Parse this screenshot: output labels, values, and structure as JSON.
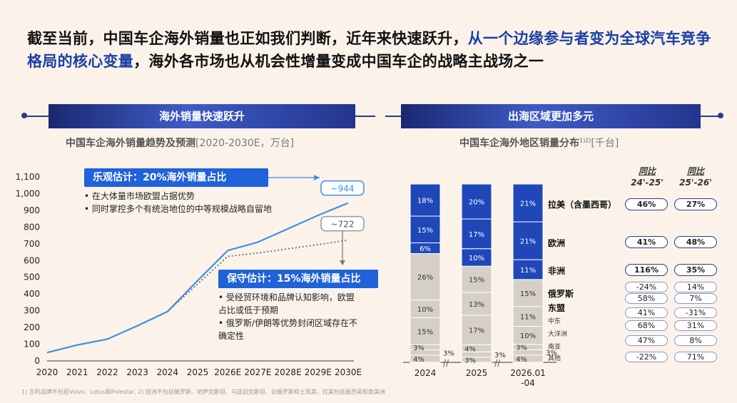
{
  "headline": {
    "part1": "截至当前，中国车企海外销量也正如我们判断，近年来快速跃升，",
    "part2": "从一个边缘参与者变为全球汽车竞争格局的核心变量",
    "part3": "，海外各市场也从机会性增量变成中国车企的战略主战场之一"
  },
  "left_banner": "海外销量快速跃升",
  "right_banner": "出海区域更加多元",
  "left_subtitle": "中国车企海外销量趋势及预测",
  "left_unit": "[2020-2030E，万台]",
  "right_subtitle": "中国车企海外地区销量分布",
  "right_sup": "1)2)",
  "right_unit": "[千台]",
  "optimistic": {
    "label": "乐观估计：20%海外销量占比",
    "end_label": "~944",
    "bullets": [
      "在大体量市场欧盟占据优势",
      "同时掌控多个有统治地位的中等规模战略自留地"
    ]
  },
  "conservative": {
    "label": "保守估计：15%海外销量占比",
    "end_label": "~722",
    "bullets": [
      "受经贸环境和品牌认知影响，欧盟占比或低于预期",
      "俄罗斯/伊朗等优势封闭区域存在不确定性"
    ]
  },
  "growth_headers": [
    {
      "l1": "同比",
      "l2": "24'-25'"
    },
    {
      "l1": "同比",
      "l2": "25'-26'"
    }
  ],
  "footnote": "1) 吉利品牌不包括Volvo、Lotus和Polestar, 2) 欧洲不包括俄罗斯、哈萨克斯坦、乌兹别克斯坦、白俄罗斯和土耳其，拉美包括墨西哥和南美洲",
  "chart_data": [
    {
      "type": "line",
      "x": [
        "2020",
        "2021",
        "2022",
        "2023",
        "2024",
        "2025",
        "2026E",
        "2027E",
        "2028E",
        "2029E",
        "2030E"
      ],
      "ylim": [
        0,
        1100
      ],
      "yticks": [
        "0",
        "100",
        "200",
        "300",
        "400",
        "500",
        "600",
        "700",
        "800",
        "900",
        "1,000",
        "1,100"
      ],
      "series": [
        {
          "name": "乐观估计",
          "values": [
            50,
            95,
            130,
            210,
            295,
            480,
            660,
            710,
            790,
            870,
            944
          ],
          "color": "#3d8fe6",
          "style": "solid"
        },
        {
          "name": "保守估计",
          "values": [
            null,
            null,
            null,
            null,
            295,
            460,
            625,
            645,
            670,
            695,
            722
          ],
          "color": "#777777",
          "style": "dotted"
        }
      ]
    },
    {
      "type": "bar",
      "stacked": true,
      "normalized": true,
      "categories": [
        "2024",
        "2025",
        "2026.01\n-04"
      ],
      "series": [
        {
          "name": "其他",
          "values": [
            4,
            3,
            4
          ],
          "color": "#d5cfc7",
          "label_side": "left"
        },
        {
          "name": "南亚",
          "values": [
            3,
            3,
            3
          ],
          "color": "#d5cfc7",
          "label_side": "right"
        },
        {
          "name": "大洋洲",
          "values": [
            3,
            4,
            3
          ],
          "color": "#d5cfc7",
          "label_side": "left"
        },
        {
          "name": "中东",
          "values": [
            15,
            17,
            10
          ],
          "color": "#d5cfc7"
        },
        {
          "name": "东盟",
          "values": [
            10,
            13,
            11
          ],
          "color": "#d5cfc7"
        },
        {
          "name": "俄罗斯",
          "values": [
            26,
            15,
            15
          ],
          "color": "#d5cfc7"
        },
        {
          "name": "非洲",
          "values": [
            6,
            10,
            11
          ],
          "color": "#1f47b8"
        },
        {
          "name": "欧洲",
          "values": [
            15,
            17,
            21
          ],
          "color": "#1f47b8"
        },
        {
          "name": "拉美（含墨西哥）",
          "values": [
            18,
            20,
            21
          ],
          "color": "#1f47b8"
        }
      ],
      "growth": [
        {
          "region": "拉美（含墨西哥）",
          "yoy_24_25": "46%",
          "yoy_25_26": "27%",
          "emph": true
        },
        {
          "region": "欧洲",
          "yoy_24_25": "41%",
          "yoy_25_26": "48%",
          "emph": true
        },
        {
          "region": "非洲",
          "yoy_24_25": "116%",
          "yoy_25_26": "35%",
          "emph": true
        },
        {
          "region": "俄罗斯",
          "yoy_24_25": "-24%",
          "yoy_25_26": "14%",
          "emph": false
        },
        {
          "region": "东盟",
          "yoy_24_25": "58%",
          "yoy_25_26": "7%",
          "emph": false
        },
        {
          "region": "中东",
          "yoy_24_25": "41%",
          "yoy_25_26": "-31%",
          "emph": false
        },
        {
          "region": "大洋洲",
          "yoy_24_25": "68%",
          "yoy_25_26": "31%",
          "emph": false
        },
        {
          "region": "南亚",
          "yoy_24_25": "47%",
          "yoy_25_26": "8%",
          "emph": false
        },
        {
          "region": "其他",
          "yoy_24_25": "-22%",
          "yoy_25_26": "71%",
          "emph": false
        }
      ]
    }
  ]
}
